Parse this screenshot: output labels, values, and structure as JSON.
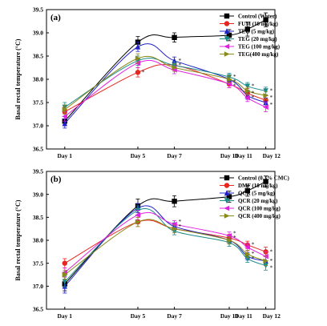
{
  "chart_data": [
    {
      "type": "line",
      "panel_label": "(a)",
      "ylabel": "Basal rectal temperature (°C)",
      "categories": [
        "Day 1",
        "Day 5",
        "Day 7",
        "Day 10",
        "Day 11",
        "Day 12"
      ],
      "x": [
        1,
        5,
        7,
        10,
        11,
        12
      ],
      "xlim": [
        0,
        12.5
      ],
      "ylim": [
        36.5,
        39.5
      ],
      "yticks": [
        "36.5",
        "37.0",
        "37.5",
        "38.0",
        "38.5",
        "39.0",
        "39.5"
      ],
      "legend_position": "top-right",
      "series": [
        {
          "name": "Control (Water)",
          "color": "#000000",
          "marker": "square",
          "values": [
            37.1,
            38.8,
            38.9,
            38.95,
            39.08,
            39.28
          ],
          "errors": [
            0.1,
            0.12,
            0.1,
            0.12,
            0.15,
            0.15
          ]
        },
        {
          "name": "FUM (10 mg/kg)",
          "color": "#e8251f",
          "marker": "circle",
          "values": [
            37.3,
            38.15,
            38.3,
            37.9,
            37.7,
            37.55
          ],
          "errors": [
            0.1,
            0.1,
            0.08,
            0.08,
            0.1,
            0.1
          ]
        },
        {
          "name": "TEG (5 mg/kg)",
          "color": "#2020c8",
          "marker": "triangle-up",
          "values": [
            37.05,
            38.7,
            38.4,
            38.0,
            37.65,
            37.5
          ],
          "errors": [
            0.1,
            0.1,
            0.08,
            0.08,
            0.08,
            0.1
          ]
        },
        {
          "name": "TEG (20 mg/kg)",
          "color": "#1a8a8a",
          "marker": "triangle-down",
          "values": [
            37.4,
            38.4,
            38.3,
            38.05,
            37.85,
            37.75
          ],
          "errors": [
            0.1,
            0.1,
            0.08,
            0.08,
            0.08,
            0.08
          ]
        },
        {
          "name": "TEG (100 mg/kg)",
          "color": "#e020e0",
          "marker": "triangle-left",
          "values": [
            37.2,
            38.35,
            38.2,
            37.9,
            37.6,
            37.4
          ],
          "errors": [
            0.1,
            0.1,
            0.08,
            0.08,
            0.08,
            0.1
          ]
        },
        {
          "name": "TEG(400 mg/kg)",
          "color": "#8a8a1a",
          "marker": "triangle-right",
          "values": [
            37.35,
            38.45,
            38.25,
            38.0,
            37.75,
            37.65
          ],
          "errors": [
            0.1,
            0.1,
            0.08,
            0.08,
            0.08,
            0.08
          ]
        }
      ],
      "annotations": [
        {
          "x": 5,
          "y": 38.15,
          "text": "*"
        },
        {
          "x": 7,
          "y": 38.4,
          "text": "*"
        },
        {
          "x": 7,
          "y": 38.3,
          "text": "*"
        },
        {
          "x": 10,
          "y": 38.05,
          "text": "*"
        },
        {
          "x": 10,
          "y": 37.95,
          "text": "*"
        },
        {
          "x": 10,
          "y": 37.85,
          "text": "*"
        },
        {
          "x": 11,
          "y": 37.85,
          "text": "*"
        },
        {
          "x": 11,
          "y": 37.7,
          "text": "*"
        },
        {
          "x": 11,
          "y": 37.6,
          "text": "*"
        },
        {
          "x": 12,
          "y": 37.75,
          "text": "*"
        },
        {
          "x": 12,
          "y": 37.6,
          "text": "*"
        },
        {
          "x": 12,
          "y": 37.45,
          "text": "*"
        }
      ]
    },
    {
      "type": "line",
      "panel_label": "(b)",
      "ylabel": "Basal rectal temperature (°C)",
      "categories": [
        "Day 1",
        "Day 5",
        "Day 7",
        "Day 10",
        "Day 11",
        "Day 12"
      ],
      "x": [
        1,
        5,
        7,
        10,
        11,
        12
      ],
      "xlim": [
        0,
        12.5
      ],
      "ylim": [
        36.5,
        39.5
      ],
      "yticks": [
        "36.5",
        "37.0",
        "37.5",
        "38.0",
        "38.5",
        "39.0",
        "39.5"
      ],
      "legend_position": "top-right",
      "series": [
        {
          "name": "Control (0.3% CMC)",
          "color": "#000000",
          "marker": "square",
          "values": [
            37.05,
            38.75,
            38.85,
            38.95,
            39.08,
            39.28
          ],
          "errors": [
            0.15,
            0.15,
            0.12,
            0.12,
            0.12,
            0.12
          ]
        },
        {
          "name": "DMF (10 mg/kg)",
          "color": "#e8251f",
          "marker": "circle",
          "values": [
            37.5,
            38.4,
            38.25,
            38.05,
            37.9,
            37.75
          ],
          "errors": [
            0.1,
            0.1,
            0.08,
            0.08,
            0.08,
            0.1
          ]
        },
        {
          "name": "QCR (5 mg/kg)",
          "color": "#2020c8",
          "marker": "triangle-up",
          "values": [
            37.0,
            38.7,
            38.3,
            38.0,
            37.65,
            37.55
          ],
          "errors": [
            0.15,
            0.1,
            0.08,
            0.08,
            0.08,
            0.1
          ]
        },
        {
          "name": "QCR (20 mg/kg)",
          "color": "#1a8a8a",
          "marker": "triangle-down",
          "values": [
            37.1,
            38.65,
            38.2,
            37.95,
            37.6,
            37.45
          ],
          "errors": [
            0.12,
            0.1,
            0.08,
            0.08,
            0.08,
            0.1
          ]
        },
        {
          "name": "QCR (100 mg/kg)",
          "color": "#e020e0",
          "marker": "triangle-left",
          "values": [
            37.3,
            38.55,
            38.35,
            38.1,
            37.85,
            37.65
          ],
          "errors": [
            0.1,
            0.1,
            0.08,
            0.08,
            0.08,
            0.1
          ]
        },
        {
          "name": "QCR (400 mg/kg)",
          "color": "#8a8a1a",
          "marker": "triangle-right",
          "values": [
            37.25,
            38.4,
            38.25,
            38.0,
            37.7,
            37.55
          ],
          "errors": [
            0.1,
            0.1,
            0.08,
            0.08,
            0.08,
            0.1
          ]
        }
      ],
      "annotations": [
        {
          "x": 7,
          "y": 38.4,
          "text": "*"
        },
        {
          "x": 7,
          "y": 38.3,
          "text": "*"
        },
        {
          "x": 10,
          "y": 38.15,
          "text": "*"
        },
        {
          "x": 10,
          "y": 38.05,
          "text": "*"
        },
        {
          "x": 11,
          "y": 37.9,
          "text": "*"
        },
        {
          "x": 11,
          "y": 37.7,
          "text": "*"
        },
        {
          "x": 11,
          "y": 37.6,
          "text": "*"
        },
        {
          "x": 12,
          "y": 37.75,
          "text": "*"
        },
        {
          "x": 12,
          "y": 37.55,
          "text": "*"
        },
        {
          "x": 12,
          "y": 37.4,
          "text": "*"
        }
      ]
    }
  ]
}
